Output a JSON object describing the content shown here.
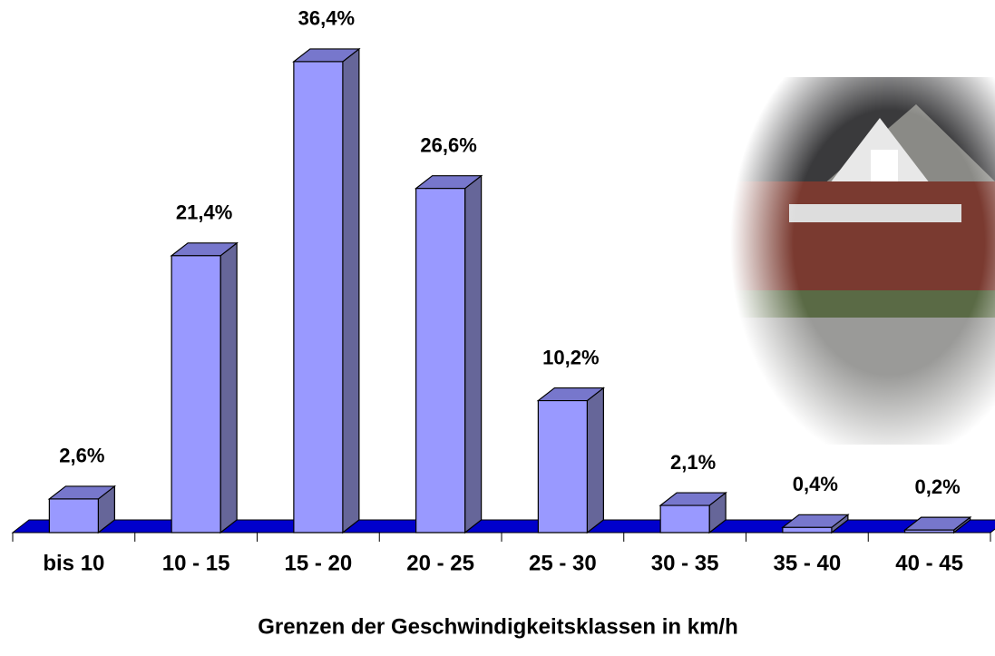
{
  "chart_data": {
    "type": "bar",
    "x_label": "Grenzen der Geschwindigkeitsklassen in km/h",
    "categories": [
      "bis 10",
      "10 - 15",
      "15 - 20",
      "20 - 25",
      "25 - 30",
      "30 - 35",
      "35 - 40",
      "40 - 45"
    ],
    "values": [
      2.6,
      21.4,
      36.4,
      26.6,
      10.2,
      2.1,
      0.4,
      0.2
    ],
    "value_labels": [
      "2,6%",
      "21,4%",
      "36,4%",
      "26,6%",
      "10,2%",
      "2,1%",
      "0,4%",
      "0,2%"
    ],
    "color": "#9999ff"
  }
}
